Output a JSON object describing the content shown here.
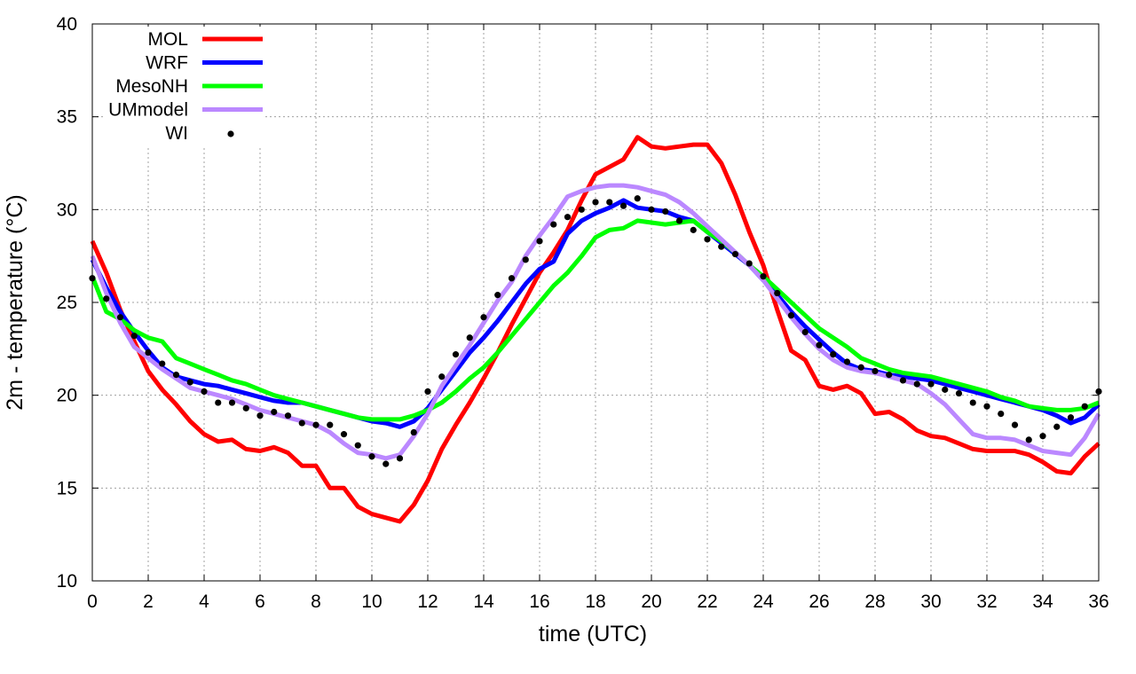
{
  "chart_data": {
    "type": "line",
    "xlabel": "time (UTC)",
    "ylabel": "2m - temperature (°C)",
    "xlim": [
      0,
      36
    ],
    "ylim": [
      10,
      40
    ],
    "xticks": [
      0,
      2,
      4,
      6,
      8,
      10,
      12,
      14,
      16,
      18,
      20,
      22,
      24,
      26,
      28,
      30,
      32,
      34,
      36
    ],
    "yticks": [
      10,
      15,
      20,
      25,
      30,
      35,
      40
    ],
    "grid": true,
    "legend_position": "top-left",
    "series": [
      {
        "name": "MOL",
        "style": "line",
        "color": "#ff0000",
        "x": [
          0,
          0.5,
          1,
          1.5,
          2,
          2.5,
          3,
          3.5,
          4,
          4.5,
          5,
          5.5,
          6,
          6.5,
          7,
          7.5,
          8,
          8.5,
          9,
          9.5,
          10,
          10.5,
          11,
          11.5,
          12,
          12.5,
          13,
          13.5,
          14,
          14.5,
          15,
          15.5,
          16,
          16.5,
          17,
          17.5,
          18,
          18.5,
          19,
          19.5,
          20,
          20.5,
          21,
          21.5,
          22,
          22.5,
          23,
          23.5,
          24,
          24.5,
          25,
          25.5,
          26,
          26.5,
          27,
          27.5,
          28,
          28.5,
          29,
          29.5,
          30,
          30.5,
          31,
          31.5,
          32,
          32.5,
          33,
          33.5,
          34,
          34.5,
          35,
          35.5,
          36
        ],
        "y": [
          28.3,
          26.6,
          24.6,
          22.9,
          21.3,
          20.3,
          19.5,
          18.6,
          17.9,
          17.5,
          17.6,
          17.1,
          17.0,
          17.2,
          16.9,
          16.2,
          16.2,
          15.0,
          15.0,
          14.0,
          13.6,
          13.4,
          13.2,
          14.1,
          15.4,
          17.1,
          18.4,
          19.6,
          20.9,
          22.3,
          23.8,
          25.2,
          26.6,
          27.7,
          28.9,
          30.5,
          31.9,
          32.3,
          32.7,
          33.9,
          33.4,
          33.3,
          33.4,
          33.5,
          33.5,
          32.5,
          30.8,
          28.8,
          27.0,
          24.6,
          22.4,
          21.9,
          20.5,
          20.3,
          20.5,
          20.1,
          19.0,
          19.1,
          18.7,
          18.1,
          17.8,
          17.7,
          17.4,
          17.1,
          17.0,
          17.0,
          17.0,
          16.8,
          16.4,
          15.9,
          15.8,
          16.7,
          17.4
        ]
      },
      {
        "name": "WRF",
        "style": "line",
        "color": "#0000ff",
        "x": [
          0,
          0.5,
          1,
          1.5,
          2,
          2.5,
          3,
          3.5,
          4,
          4.5,
          5,
          5.5,
          6,
          6.5,
          7,
          7.5,
          8,
          8.5,
          9,
          9.5,
          10,
          10.5,
          11,
          11.5,
          12,
          12.5,
          13,
          13.5,
          14,
          14.5,
          15,
          15.5,
          16,
          16.5,
          17,
          17.5,
          18,
          18.5,
          19,
          19.5,
          20,
          20.5,
          21,
          21.5,
          22,
          22.5,
          23,
          23.5,
          24,
          24.5,
          25,
          25.5,
          26,
          26.5,
          27,
          27.5,
          28,
          28.5,
          29,
          29.5,
          30,
          30.5,
          31,
          31.5,
          32,
          32.5,
          33,
          33.5,
          34,
          34.5,
          35,
          35.5,
          36
        ],
        "y": [
          27.3,
          25.8,
          24.5,
          23.4,
          22.4,
          21.5,
          21.0,
          20.8,
          20.6,
          20.5,
          20.3,
          20.1,
          19.9,
          19.7,
          19.6,
          19.6,
          19.4,
          19.2,
          19.0,
          18.8,
          18.6,
          18.5,
          18.3,
          18.6,
          19.3,
          20.3,
          21.3,
          22.3,
          23.1,
          24.0,
          25.0,
          26.0,
          26.8,
          27.2,
          28.7,
          29.4,
          29.8,
          30.1,
          30.5,
          30.1,
          30.0,
          29.9,
          29.6,
          29.4,
          28.8,
          28.2,
          27.6,
          27.0,
          26.2,
          25.4,
          24.5,
          23.7,
          23.0,
          22.3,
          21.7,
          21.4,
          21.3,
          21.1,
          21.0,
          20.9,
          20.8,
          20.6,
          20.4,
          20.2,
          20.0,
          19.8,
          19.6,
          19.4,
          19.2,
          18.9,
          18.5,
          18.8,
          19.5
        ]
      },
      {
        "name": "MesoNH",
        "style": "line",
        "color": "#00ff00",
        "x": [
          0,
          0.5,
          1,
          1.5,
          2,
          2.5,
          3,
          3.5,
          4,
          4.5,
          5,
          5.5,
          6,
          6.5,
          7,
          7.5,
          8,
          8.5,
          9,
          9.5,
          10,
          10.5,
          11,
          11.5,
          12,
          12.5,
          13,
          13.5,
          14,
          14.5,
          15,
          15.5,
          16,
          16.5,
          17,
          17.5,
          18,
          18.5,
          19,
          19.5,
          20,
          20.5,
          21,
          21.5,
          22,
          22.5,
          23,
          23.5,
          24,
          24.5,
          25,
          25.5,
          26,
          26.5,
          27,
          27.5,
          28,
          28.5,
          29,
          29.5,
          30,
          30.5,
          31,
          31.5,
          32,
          32.5,
          33,
          33.5,
          34,
          34.5,
          35,
          35.5,
          36
        ],
        "y": [
          26.4,
          24.5,
          24.1,
          23.5,
          23.1,
          22.9,
          22.0,
          21.7,
          21.4,
          21.1,
          20.8,
          20.6,
          20.3,
          20.0,
          19.8,
          19.6,
          19.4,
          19.2,
          19.0,
          18.8,
          18.7,
          18.7,
          18.7,
          18.9,
          19.2,
          19.6,
          20.2,
          20.9,
          21.5,
          22.3,
          23.2,
          24.1,
          25.0,
          25.9,
          26.6,
          27.5,
          28.5,
          28.9,
          29.0,
          29.4,
          29.3,
          29.2,
          29.3,
          29.4,
          28.8,
          28.3,
          27.7,
          27.0,
          26.4,
          25.7,
          25.0,
          24.3,
          23.6,
          23.1,
          22.6,
          22.0,
          21.7,
          21.4,
          21.2,
          21.1,
          21.0,
          20.8,
          20.6,
          20.4,
          20.2,
          19.9,
          19.7,
          19.4,
          19.3,
          19.2,
          19.2,
          19.3,
          19.6
        ]
      },
      {
        "name": "UMmodel",
        "style": "line",
        "color": "#bb88ff",
        "x": [
          0,
          0.5,
          1,
          1.5,
          2,
          2.5,
          3,
          3.5,
          4,
          4.5,
          5,
          5.5,
          6,
          6.5,
          7,
          7.5,
          8,
          8.5,
          9,
          9.5,
          10,
          10.5,
          11,
          11.5,
          12,
          12.5,
          13,
          13.5,
          14,
          14.5,
          15,
          15.5,
          16,
          16.5,
          17,
          17.5,
          18,
          18.5,
          19,
          19.5,
          20,
          20.5,
          21,
          21.5,
          22,
          22.5,
          23,
          23.5,
          24,
          24.5,
          25,
          25.5,
          26,
          26.5,
          27,
          27.5,
          28,
          28.5,
          29,
          29.5,
          30,
          30.5,
          31,
          31.5,
          32,
          32.5,
          33,
          33.5,
          34,
          34.5,
          35,
          35.5,
          36
        ],
        "y": [
          27.5,
          25.5,
          23.9,
          22.6,
          22.0,
          21.4,
          20.9,
          20.4,
          20.2,
          20.0,
          19.8,
          19.5,
          19.2,
          19.0,
          18.8,
          18.6,
          18.4,
          18.0,
          17.4,
          16.9,
          16.8,
          16.6,
          16.8,
          17.8,
          19.0,
          20.5,
          21.6,
          22.7,
          23.9,
          25.1,
          26.1,
          27.5,
          28.6,
          29.6,
          30.7,
          31.0,
          31.2,
          31.3,
          31.3,
          31.2,
          31.0,
          30.8,
          30.4,
          29.8,
          29.1,
          28.4,
          27.7,
          27.0,
          26.2,
          25.2,
          24.2,
          23.3,
          22.5,
          21.9,
          21.5,
          21.3,
          21.2,
          21.0,
          20.8,
          20.6,
          20.1,
          19.5,
          18.7,
          17.9,
          17.7,
          17.7,
          17.6,
          17.3,
          17.0,
          16.9,
          16.8,
          17.7,
          19.0
        ]
      },
      {
        "name": "WI",
        "style": "points",
        "color": "#000000",
        "x": [
          0,
          0.5,
          1,
          1.5,
          2,
          2.5,
          3,
          3.5,
          4,
          4.5,
          5,
          5.5,
          6,
          6.5,
          7,
          7.5,
          8,
          8.5,
          9,
          9.5,
          10,
          10.5,
          11,
          11.5,
          12,
          12.5,
          13,
          13.5,
          14,
          14.5,
          15,
          15.5,
          16,
          16.5,
          17,
          17.5,
          18,
          18.5,
          19,
          19.5,
          20,
          20.5,
          21,
          21.5,
          22,
          22.5,
          23,
          23.5,
          24,
          24.5,
          25,
          25.5,
          26,
          26.5,
          27,
          27.5,
          28,
          28.5,
          29,
          29.5,
          30,
          30.5,
          31,
          31.5,
          32,
          32.5,
          33,
          33.5,
          34,
          34.5,
          35,
          35.5,
          36
        ],
        "y": [
          26.3,
          25.2,
          24.2,
          23.2,
          22.3,
          21.7,
          21.1,
          20.7,
          20.2,
          19.6,
          19.6,
          19.3,
          18.9,
          19.1,
          18.9,
          18.5,
          18.4,
          18.4,
          17.9,
          17.3,
          16.7,
          16.3,
          16.6,
          18.0,
          20.2,
          21.0,
          22.2,
          23.1,
          24.2,
          25.4,
          26.3,
          27.3,
          28.3,
          29.2,
          29.6,
          30.0,
          30.4,
          30.4,
          30.2,
          30.6,
          30.0,
          29.9,
          29.4,
          28.9,
          28.4,
          28.0,
          27.6,
          27.1,
          26.4,
          25.5,
          24.3,
          23.4,
          22.7,
          22.2,
          21.8,
          21.5,
          21.3,
          21.1,
          20.8,
          20.6,
          20.6,
          20.3,
          20.1,
          19.6,
          19.4,
          19.0,
          18.4,
          17.6,
          17.8,
          18.3,
          18.8,
          19.4,
          20.2
        ]
      }
    ]
  }
}
